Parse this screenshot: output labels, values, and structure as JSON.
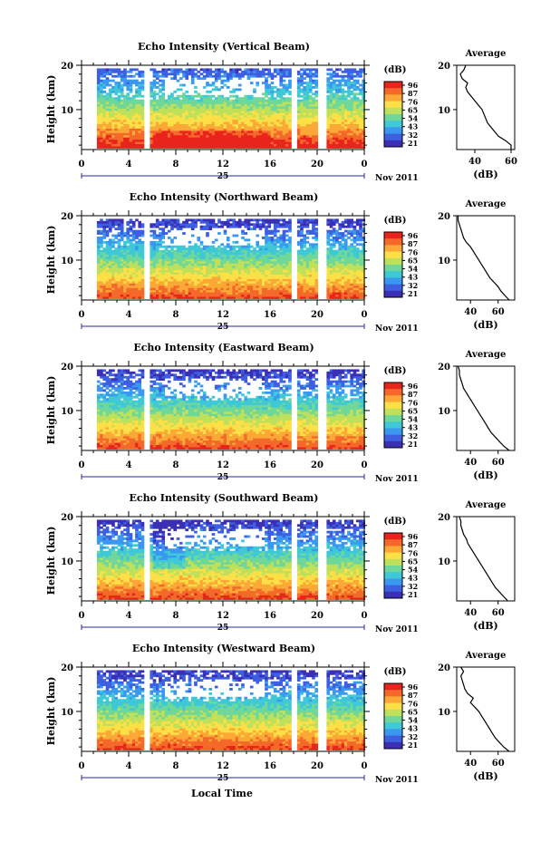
{
  "figure": {
    "time_axis_label": "Local Time",
    "date_label": "Nov 2011"
  },
  "colorbar": {
    "unit": "(dB)",
    "ticks": [
      "96",
      "87",
      "76",
      "65",
      "54",
      "43",
      "32",
      "21"
    ],
    "colors": [
      "#e8241c",
      "#f4692a",
      "#fba836",
      "#fde047",
      "#bfe05a",
      "#6fd79a",
      "#3fc9d6",
      "#3a98f0",
      "#3d5fe0",
      "#3a2fb5"
    ]
  },
  "chart_data": [
    {
      "type": "heatmap",
      "title": "Echo Intensity (Vertical Beam)",
      "ylabel": "Height (km)",
      "x_ticks": [
        "0",
        "4",
        "8",
        "12",
        "16",
        "20",
        "0"
      ],
      "y_ticks": [
        "20",
        "10"
      ],
      "date_tick": "25",
      "xlim": [
        0,
        24
      ],
      "ylim": [
        1,
        20
      ],
      "profile": {
        "title": "Average",
        "xlabel": "(dB)",
        "x_ticks": [
          "40",
          "60"
        ],
        "xlim": [
          30,
          62
        ],
        "heights": [
          1,
          2,
          3,
          4,
          5,
          6,
          7,
          8,
          9,
          10,
          11,
          12,
          13,
          14,
          15,
          16,
          17,
          18,
          19,
          20
        ],
        "values": [
          60,
          60,
          57,
          53,
          51,
          49,
          47,
          46,
          45,
          44,
          42,
          40,
          38,
          36,
          35,
          36,
          33,
          32,
          34,
          35
        ]
      }
    },
    {
      "type": "heatmap",
      "title": "Echo Intensity (Northward Beam)",
      "ylabel": "Height (km)",
      "x_ticks": [
        "0",
        "4",
        "8",
        "12",
        "16",
        "20",
        "0"
      ],
      "y_ticks": [
        "20",
        "10"
      ],
      "date_tick": "25",
      "xlim": [
        0,
        24
      ],
      "ylim": [
        1,
        20
      ],
      "profile": {
        "title": "Average",
        "xlabel": "(dB)",
        "x_ticks": [
          "40",
          "60"
        ],
        "xlim": [
          30,
          72
        ],
        "heights": [
          1,
          2,
          3,
          4,
          5,
          6,
          7,
          8,
          9,
          10,
          11,
          12,
          13,
          14,
          15,
          16,
          17,
          18,
          19,
          20
        ],
        "values": [
          68,
          65,
          62,
          60,
          57,
          54,
          52,
          50,
          48,
          46,
          44,
          42,
          40,
          37,
          35,
          34,
          33,
          32,
          31,
          31
        ]
      }
    },
    {
      "type": "heatmap",
      "title": "Echo Intensity (Eastward Beam)",
      "ylabel": "Height (km)",
      "x_ticks": [
        "0",
        "4",
        "8",
        "12",
        "16",
        "20",
        "0"
      ],
      "y_ticks": [
        "20",
        "10"
      ],
      "date_tick": "25",
      "xlim": [
        0,
        24
      ],
      "ylim": [
        1,
        20
      ],
      "profile": {
        "title": "Average",
        "xlabel": "(dB)",
        "x_ticks": [
          "40",
          "60"
        ],
        "xlim": [
          30,
          72
        ],
        "heights": [
          1,
          2,
          3,
          4,
          5,
          6,
          7,
          8,
          9,
          10,
          11,
          12,
          13,
          14,
          15,
          16,
          17,
          18,
          19,
          20
        ],
        "values": [
          68,
          64,
          61,
          58,
          55,
          53,
          51,
          49,
          47,
          45,
          43,
          41,
          39,
          37,
          35,
          34,
          33,
          32,
          32,
          31
        ]
      }
    },
    {
      "type": "heatmap",
      "title": "Echo Intensity (Southward Beam)",
      "ylabel": "Height (km)",
      "x_ticks": [
        "0",
        "4",
        "8",
        "12",
        "16",
        "20",
        "0"
      ],
      "y_ticks": [
        "20",
        "10"
      ],
      "date_tick": "25",
      "xlim": [
        0,
        24
      ],
      "ylim": [
        1,
        20
      ],
      "profile": {
        "title": "Average",
        "xlabel": "(dB)",
        "x_ticks": [
          "40",
          "60"
        ],
        "xlim": [
          30,
          72
        ],
        "heights": [
          1,
          2,
          3,
          4,
          5,
          6,
          7,
          8,
          9,
          10,
          11,
          12,
          13,
          14,
          15,
          16,
          17,
          18,
          19,
          20
        ],
        "values": [
          67,
          64,
          61,
          58,
          56,
          54,
          52,
          50,
          48,
          46,
          44,
          42,
          40,
          38,
          37,
          35,
          34,
          33,
          33,
          32
        ]
      }
    },
    {
      "type": "heatmap",
      "title": "Echo Intensity (Westward Beam)",
      "ylabel": "Height (km)",
      "x_ticks": [
        "0",
        "4",
        "8",
        "12",
        "16",
        "20",
        "0"
      ],
      "y_ticks": [
        "20",
        "10"
      ],
      "date_tick": "25",
      "xlim": [
        0,
        24
      ],
      "ylim": [
        1,
        20
      ],
      "profile": {
        "title": "Average",
        "xlabel": "(dB)",
        "x_ticks": [
          "40",
          "60"
        ],
        "xlim": [
          30,
          72
        ],
        "heights": [
          1,
          2,
          3,
          4,
          5,
          6,
          7,
          8,
          9,
          10,
          11,
          12,
          13,
          14,
          15,
          16,
          17,
          18,
          19,
          20
        ],
        "values": [
          68,
          64,
          61,
          58,
          56,
          54,
          52,
          50,
          48,
          46,
          43,
          40,
          42,
          38,
          36,
          35,
          34,
          33,
          35,
          33
        ]
      }
    }
  ]
}
